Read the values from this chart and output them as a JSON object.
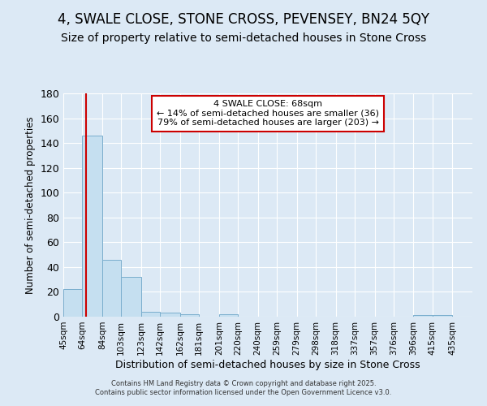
{
  "title": "4, SWALE CLOSE, STONE CROSS, PEVENSEY, BN24 5QY",
  "subtitle": "Size of property relative to semi-detached houses in Stone Cross",
  "xlabel": "Distribution of semi-detached houses by size in Stone Cross",
  "ylabel": "Number of semi-detached properties",
  "bin_labels": [
    "45sqm",
    "64sqm",
    "84sqm",
    "103sqm",
    "123sqm",
    "142sqm",
    "162sqm",
    "181sqm",
    "201sqm",
    "220sqm",
    "240sqm",
    "259sqm",
    "279sqm",
    "298sqm",
    "318sqm",
    "337sqm",
    "357sqm",
    "376sqm",
    "396sqm",
    "415sqm",
    "435sqm"
  ],
  "bin_edges": [
    45,
    64,
    84,
    103,
    123,
    142,
    162,
    181,
    201,
    220,
    240,
    259,
    279,
    298,
    318,
    337,
    357,
    376,
    396,
    415,
    435
  ],
  "values": [
    22,
    146,
    46,
    32,
    4,
    3,
    2,
    0,
    2,
    0,
    0,
    0,
    0,
    0,
    0,
    0,
    0,
    0,
    1,
    1,
    0
  ],
  "bar_color": "#c5dff0",
  "bar_edge_color": "#7aaecd",
  "property_size": 68,
  "red_line_color": "#cc0000",
  "annotation_text": "4 SWALE CLOSE: 68sqm\n← 14% of semi-detached houses are smaller (36)\n79% of semi-detached houses are larger (203) →",
  "annotation_box_color": "#ffffff",
  "annotation_box_edge_color": "#cc0000",
  "ylim": [
    0,
    180
  ],
  "yticks": [
    0,
    20,
    40,
    60,
    80,
    100,
    120,
    140,
    160,
    180
  ],
  "background_color": "#dce9f5",
  "plot_bg_color": "#dce9f5",
  "grid_color": "#ffffff",
  "footer_text": "Contains HM Land Registry data © Crown copyright and database right 2025.\nContains public sector information licensed under the Open Government Licence v3.0.",
  "title_fontsize": 12,
  "subtitle_fontsize": 10,
  "annotation_fontsize": 8
}
